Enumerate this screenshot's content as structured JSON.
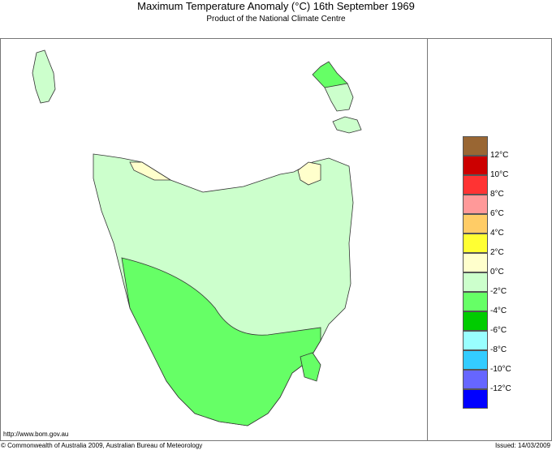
{
  "title": "Maximum Temperature Anomaly (°C)  16th September 1969",
  "subtitle": "Product of the National Climate Centre",
  "url": "http://www.bom.gov.au",
  "copyright": "© Commonwealth of Australia 2009, Australian Bureau of Meteorology",
  "issued": "Issued: 14/03/2009",
  "legend": {
    "colors": [
      "#996633",
      "#cc0000",
      "#ff3333",
      "#ff9999",
      "#ffcc66",
      "#ffff33",
      "#ffffcc",
      "#ccffcc",
      "#66ff66",
      "#00cc00",
      "#99ffff",
      "#33ccff",
      "#6666ff",
      "#0000ff"
    ],
    "labels": [
      "12°C",
      "10°C",
      "8°C",
      "6°C",
      "4°C",
      "2°C",
      "0°C",
      "-2°C",
      "-4°C",
      "-6°C",
      "-8°C",
      "-10°C",
      "-12°C"
    ]
  },
  "regions": {
    "north_and_east": "#ccffcc",
    "south_west": "#66ff66",
    "north_coast_patches": "#ffffcc"
  }
}
